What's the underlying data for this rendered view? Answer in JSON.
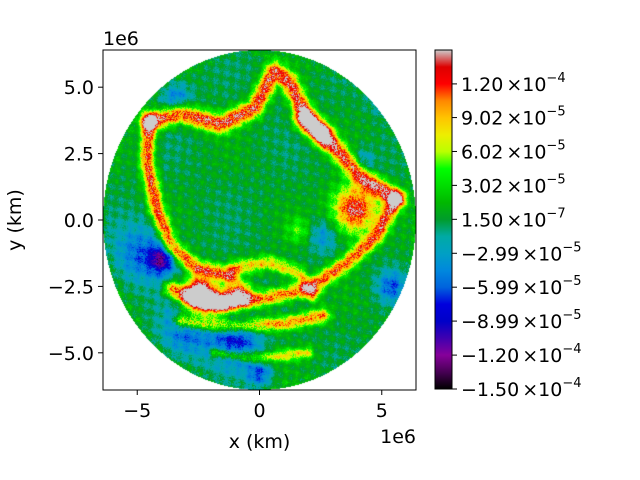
{
  "chart_data": {
    "type": "heatmap",
    "title": "",
    "xlabel": "x (km)",
    "ylabel": "y (km)",
    "x_offset_text": "1e6",
    "y_offset_text": "1e6",
    "xlim": [
      -6.4,
      6.4
    ],
    "ylim": [
      -6.4,
      6.4
    ],
    "x_ticks": [
      -5,
      0,
      5
    ],
    "x_tick_labels": [
      "−5",
      "0",
      "5"
    ],
    "y_ticks": [
      5.0,
      2.5,
      0.0,
      -2.5,
      -5.0
    ],
    "y_tick_labels": [
      "5.0",
      "2.5",
      "0.0",
      "−2.5",
      "−5.0"
    ],
    "domain_shape": "disk",
    "domain_radius": 6.4,
    "colormap": "nipy_spectral",
    "colorbar": {
      "vmin": -0.00015,
      "vmax": 0.00015,
      "ticks": [
        {
          "value": 0.00012,
          "mantissa": "1.20",
          "exponent": "−4"
        },
        {
          "value": 9.02e-05,
          "mantissa": "9.02",
          "exponent": "−5"
        },
        {
          "value": 6.02e-05,
          "mantissa": "6.02",
          "exponent": "−5"
        },
        {
          "value": 3.02e-05,
          "mantissa": "3.02",
          "exponent": "−5"
        },
        {
          "value": 1.5e-07,
          "mantissa": "1.50",
          "exponent": "−7"
        },
        {
          "value": -2.99e-05,
          "mantissa": "−2.99",
          "exponent": "−5"
        },
        {
          "value": -5.99e-05,
          "mantissa": "−5.99",
          "exponent": "−5"
        },
        {
          "value": -8.99e-05,
          "mantissa": "−8.99",
          "exponent": "−5"
        },
        {
          "value": -0.00012,
          "mantissa": "−1.20",
          "exponent": "−4"
        },
        {
          "value": -0.00015,
          "mantissa": "−1.50",
          "exponent": "−4"
        }
      ],
      "times_symbol": "×",
      "base": "10"
    },
    "background_level": 2e-06,
    "features": [
      {
        "kind": "filament-positive",
        "points": [
          [
            -4.5,
            3.7
          ],
          [
            -3.2,
            4.0
          ],
          [
            -1.6,
            3.6
          ],
          [
            -0.2,
            4.2
          ],
          [
            0.6,
            5.6
          ],
          [
            1.2,
            5.2
          ],
          [
            2.0,
            3.8
          ],
          [
            3.0,
            2.8
          ],
          [
            4.2,
            1.6
          ],
          [
            5.6,
            0.8
          ]
        ],
        "value": 0.00013,
        "width": 0.35
      },
      {
        "kind": "filament-positive",
        "points": [
          [
            -4.5,
            3.7
          ],
          [
            -4.6,
            2.2
          ],
          [
            -4.2,
            0.4
          ],
          [
            -3.6,
            -1.0
          ],
          [
            -2.6,
            -1.8
          ],
          [
            -1.2,
            -2.1
          ]
        ],
        "value": 0.00012,
        "width": 0.3
      },
      {
        "kind": "filament-positive",
        "points": [
          [
            -3.6,
            -2.6
          ],
          [
            -2.2,
            -3.2
          ],
          [
            0.0,
            -3.0
          ],
          [
            2.0,
            -2.6
          ],
          [
            3.6,
            -1.6
          ],
          [
            4.8,
            -0.6
          ],
          [
            5.6,
            0.8
          ]
        ],
        "value": 0.00011,
        "width": 0.3
      },
      {
        "kind": "filament-positive",
        "points": [
          [
            -3.2,
            -3.8
          ],
          [
            -1.2,
            -4.0
          ],
          [
            1.0,
            -3.9
          ],
          [
            2.6,
            -3.6
          ]
        ],
        "value": 0.0001,
        "width": 0.28
      },
      {
        "kind": "filament-positive",
        "points": [
          [
            -1.8,
            -5.0
          ],
          [
            0.0,
            -5.2
          ],
          [
            2.0,
            -5.0
          ]
        ],
        "value": 7e-05,
        "width": 0.22
      },
      {
        "kind": "filament-positive",
        "points": [
          [
            1.8,
            3.8
          ],
          [
            2.6,
            3.2
          ]
        ],
        "value": 0.00013,
        "width": 0.4
      },
      {
        "kind": "filament-positive",
        "points": [
          [
            -2.4,
            -2.7
          ],
          [
            -1.6,
            -3.1
          ],
          [
            -0.8,
            -2.8
          ]
        ],
        "value": 0.00014,
        "width": 0.45
      },
      {
        "kind": "filament-positive",
        "points": [
          [
            -1.0,
            -1.8
          ],
          [
            0.4,
            -1.6
          ],
          [
            1.6,
            -2.0
          ],
          [
            2.2,
            -2.8
          ]
        ],
        "value": 8e-05,
        "width": 0.28
      },
      {
        "kind": "blob-positive",
        "center": [
          3.9,
          0.4
        ],
        "radius": 0.9,
        "value": 0.00014
      },
      {
        "kind": "blob-positive",
        "center": [
          -2.6,
          -2.9
        ],
        "radius": 0.6,
        "value": 0.00013
      },
      {
        "kind": "blob-negative",
        "center": [
          -4.8,
          -1.3
        ],
        "radius": 1.1,
        "value": -6e-05
      },
      {
        "kind": "blob-negative",
        "center": [
          -4.0,
          -1.5
        ],
        "radius": 0.5,
        "value": -9e-05
      },
      {
        "kind": "blob-negative",
        "center": [
          -1.0,
          -4.5
        ],
        "radius": 1.0,
        "value": -8e-05
      },
      {
        "kind": "blob-negative",
        "center": [
          -3.0,
          -4.2
        ],
        "radius": 1.0,
        "value": -6e-05
      },
      {
        "kind": "blob-negative",
        "center": [
          5.2,
          4.6
        ],
        "radius": 0.6,
        "value": -6e-05
      },
      {
        "kind": "blob-negative",
        "center": [
          5.4,
          -2.5
        ],
        "radius": 0.6,
        "value": -6e-05
      },
      {
        "kind": "blob-negative",
        "center": [
          -3.4,
          4.6
        ],
        "radius": 0.6,
        "value": -5e-05
      },
      {
        "kind": "blob-negative",
        "center": [
          0.0,
          -5.8
        ],
        "radius": 0.5,
        "value": -6e-05
      },
      {
        "kind": "blob-negative",
        "center": [
          4.2,
          2.2
        ],
        "radius": 0.5,
        "value": -4e-05
      },
      {
        "kind": "blob-negative",
        "center": [
          2.6,
          -0.6
        ],
        "radius": 0.6,
        "value": -4e-05
      },
      {
        "kind": "blob-positive",
        "center": [
          1.6,
          -0.4
        ],
        "radius": 0.5,
        "value": 4e-05
      }
    ]
  }
}
